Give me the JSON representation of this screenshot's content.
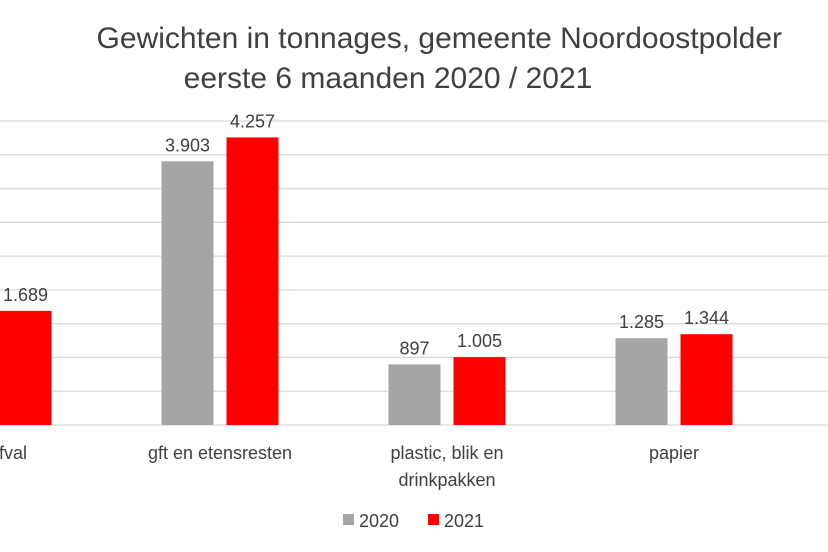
{
  "chart_data": {
    "type": "bar",
    "title_line1": "Gewichten in tonnages, gemeente Noordoostpolder",
    "title_line2": "eerste 6 maanden 2020 / 2021",
    "categories": [
      "restafval",
      "gft en etensresten",
      "plastic, blik en drinkpakken",
      "papier"
    ],
    "category_lines": [
      [
        "restafval"
      ],
      [
        "gft en etensresten"
      ],
      [
        "plastic, blik en",
        "drinkpakken"
      ],
      [
        "papier"
      ]
    ],
    "series": [
      {
        "name": "2020",
        "color": "#A5A5A5",
        "values": [
          null,
          3903,
          897,
          1285
        ],
        "labels": [
          null,
          "3.903",
          "897",
          "1.285"
        ]
      },
      {
        "name": "2021",
        "color": "#FF0000",
        "values": [
          1689,
          4257,
          1005,
          1344
        ],
        "labels": [
          "1.689",
          "4.257",
          "1.005",
          "1.344"
        ]
      }
    ],
    "ylim": [
      0,
      4500
    ],
    "grid": true,
    "grid_step": 500,
    "legend_position": "bottom"
  }
}
